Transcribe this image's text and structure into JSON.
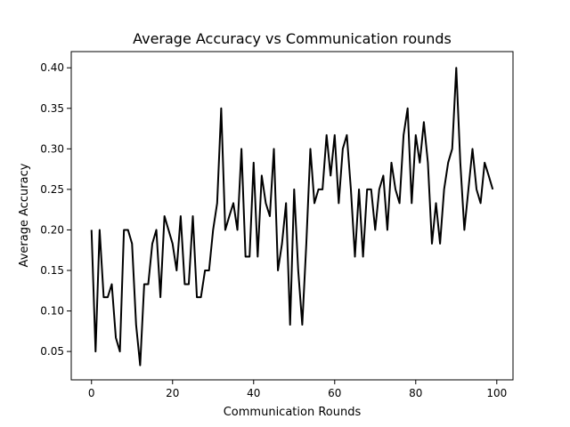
{
  "chart_data": {
    "type": "line",
    "title": "Average Accuracy vs Communication rounds",
    "xlabel": "Communication Rounds",
    "ylabel": "Average Accuracy",
    "xlim": [
      -5,
      104
    ],
    "ylim": [
      0.015,
      0.42
    ],
    "xticks": [
      0,
      20,
      40,
      60,
      80,
      100
    ],
    "yticks": [
      0.05,
      0.1,
      0.15,
      0.2,
      0.25,
      0.3,
      0.35,
      0.4
    ],
    "xtick_labels": [
      "0",
      "20",
      "40",
      "60",
      "80",
      "100"
    ],
    "ytick_labels": [
      "0.05",
      "0.10",
      "0.15",
      "0.20",
      "0.25",
      "0.30",
      "0.35",
      "0.40"
    ],
    "grid": false,
    "line_color": "#000000",
    "series": [
      {
        "x": [
          0,
          1,
          2,
          3,
          4,
          5,
          6,
          7,
          8,
          9,
          10,
          11,
          12,
          13,
          14,
          15,
          16,
          17,
          18,
          19,
          20,
          21,
          22,
          23,
          24,
          25,
          26,
          27,
          28,
          29,
          30,
          31,
          32,
          33,
          34,
          35,
          36,
          37,
          38,
          39,
          40,
          41,
          42,
          43,
          44,
          45,
          46,
          47,
          48,
          49,
          50,
          51,
          52,
          53,
          54,
          55,
          56,
          57,
          58,
          59,
          60,
          61,
          62,
          63,
          64,
          65,
          66,
          67,
          68,
          69,
          70,
          71,
          72,
          73,
          74,
          75,
          76,
          77,
          78,
          79,
          80,
          81,
          82,
          83,
          84,
          85,
          86,
          87,
          88,
          89,
          90,
          91,
          92,
          93,
          94,
          95,
          96,
          97,
          98,
          99
        ],
        "values": [
          0.2,
          0.05,
          0.2,
          0.117,
          0.117,
          0.133,
          0.067,
          0.05,
          0.2,
          0.2,
          0.183,
          0.083,
          0.033,
          0.133,
          0.133,
          0.183,
          0.2,
          0.117,
          0.217,
          0.2,
          0.183,
          0.15,
          0.217,
          0.133,
          0.133,
          0.217,
          0.117,
          0.117,
          0.15,
          0.15,
          0.2,
          0.233,
          0.35,
          0.2,
          0.217,
          0.233,
          0.2,
          0.3,
          0.167,
          0.167,
          0.283,
          0.167,
          0.267,
          0.233,
          0.217,
          0.3,
          0.15,
          0.183,
          0.233,
          0.083,
          0.25,
          0.15,
          0.083,
          0.183,
          0.3,
          0.233,
          0.25,
          0.25,
          0.317,
          0.267,
          0.317,
          0.233,
          0.3,
          0.317,
          0.25,
          0.167,
          0.25,
          0.167,
          0.25,
          0.25,
          0.2,
          0.25,
          0.267,
          0.2,
          0.283,
          0.25,
          0.233,
          0.317,
          0.35,
          0.233,
          0.317,
          0.283,
          0.333,
          0.283,
          0.183,
          0.233,
          0.183,
          0.25,
          0.283,
          0.3,
          0.4,
          0.283,
          0.2,
          0.25,
          0.3,
          0.25,
          0.233,
          0.283,
          0.267,
          0.25
        ]
      }
    ]
  }
}
